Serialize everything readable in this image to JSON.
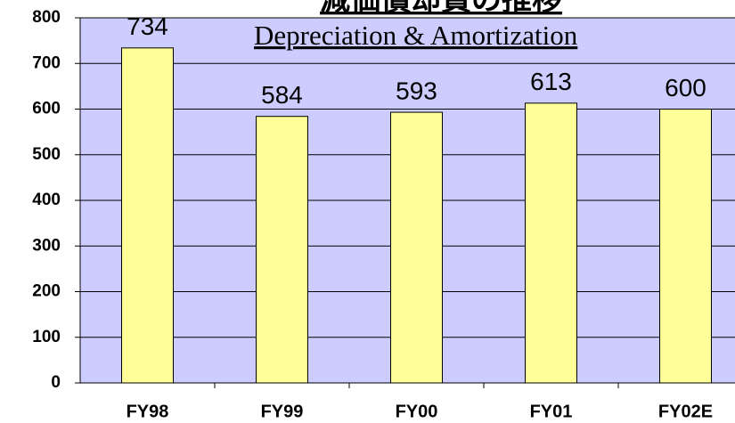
{
  "chart_data": {
    "type": "bar",
    "title": "減価償却費の推移",
    "subtitle": "Depreciation & Amortization",
    "categories": [
      "FY98",
      "FY99",
      "FY00",
      "FY01",
      "FY02E"
    ],
    "values": [
      734,
      584,
      593,
      613,
      600
    ],
    "color": "#ffff99",
    "ylim": [
      0,
      800
    ],
    "yticks": [
      0,
      100,
      200,
      300,
      400,
      500,
      600,
      700,
      800
    ],
    "grid": true
  }
}
